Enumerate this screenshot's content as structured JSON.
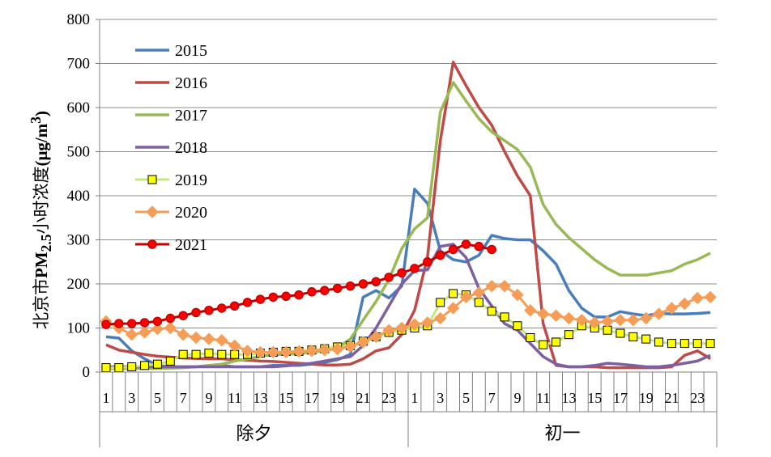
{
  "chart_data": {
    "type": "line",
    "ylabel_parts": {
      "prefix": "北京市",
      "pm": "PM",
      "sub": "2.5",
      "mid": "小时浓度",
      "unit_open": "(μg/m",
      "sup": "3",
      "unit_close": ")"
    },
    "ylim": [
      0,
      800
    ],
    "yticks": [
      "0",
      "100",
      "200",
      "300",
      "400",
      "500",
      "600",
      "700",
      "800"
    ],
    "x_tick_labels": [
      "1",
      "3",
      "5",
      "7",
      "9",
      "11",
      "13",
      "15",
      "17",
      "19",
      "21",
      "23",
      "1",
      "3",
      "5",
      "7",
      "9",
      "11",
      "13",
      "15",
      "17",
      "19",
      "21",
      "23"
    ],
    "groups": [
      "除夕",
      "初一"
    ],
    "legend_position": "top-left",
    "series": [
      {
        "name": "2015",
        "color": "#4A7EBB",
        "marker": "none",
        "values": [
          80,
          77,
          48,
          30,
          15,
          12,
          12,
          12,
          15,
          15,
          12,
          12,
          12,
          15,
          15,
          15,
          18,
          22,
          28,
          40,
          170,
          185,
          168,
          195,
          415,
          383,
          275,
          255,
          250,
          265,
          310,
          303,
          300,
          300,
          275,
          245,
          185,
          145,
          125,
          125,
          137,
          132,
          128,
          133,
          132,
          132,
          133,
          135
        ]
      },
      {
        "name": "2016",
        "color": "#BE4B48",
        "marker": "none",
        "values": [
          62,
          50,
          45,
          40,
          36,
          34,
          32,
          31,
          30,
          30,
          28,
          27,
          25,
          24,
          22,
          20,
          18,
          16,
          16,
          18,
          30,
          48,
          55,
          85,
          140,
          260,
          525,
          703,
          650,
          600,
          560,
          500,
          445,
          400,
          110,
          15,
          12,
          12,
          12,
          10,
          10,
          10,
          10,
          10,
          12,
          38,
          48,
          30
        ]
      },
      {
        "name": "2017",
        "color": "#98B954",
        "marker": "none",
        "values": [
          8,
          8,
          8,
          8,
          8,
          9,
          10,
          12,
          15,
          18,
          25,
          30,
          35,
          40,
          40,
          42,
          45,
          48,
          55,
          75,
          118,
          160,
          210,
          280,
          325,
          350,
          590,
          657,
          615,
          575,
          545,
          525,
          505,
          465,
          380,
          335,
          305,
          280,
          255,
          235,
          220,
          220,
          220,
          225,
          230,
          245,
          255,
          270
        ]
      },
      {
        "name": "2018",
        "color": "#7D60A0",
        "marker": "none",
        "values": [
          12,
          12,
          12,
          12,
          12,
          12,
          12,
          12,
          12,
          12,
          12,
          12,
          12,
          12,
          14,
          17,
          20,
          25,
          30,
          35,
          60,
          100,
          150,
          200,
          230,
          232,
          285,
          290,
          260,
          190,
          150,
          110,
          95,
          65,
          35,
          18,
          12,
          12,
          15,
          20,
          18,
          15,
          12,
          12,
          15,
          20,
          25,
          38
        ]
      },
      {
        "name": "2019",
        "color": "#000000",
        "lineColor": "#C6E77A",
        "fill": "#FFFF00",
        "marker": "square",
        "values": [
          10,
          10,
          12,
          15,
          18,
          25,
          40,
          40,
          43,
          40,
          40,
          40,
          43,
          45,
          47,
          47,
          50,
          53,
          57,
          60,
          70,
          80,
          90,
          95,
          100,
          105,
          158,
          178,
          175,
          158,
          138,
          125,
          105,
          78,
          62,
          68,
          85,
          105,
          100,
          95,
          88,
          80,
          75,
          68,
          65,
          65,
          65,
          65
        ]
      },
      {
        "name": "2020",
        "color": "#F59D56",
        "marker": "diamond",
        "values": [
          115,
          100,
          85,
          90,
          98,
          100,
          85,
          78,
          75,
          72,
          60,
          48,
          45,
          45,
          45,
          47,
          48,
          50,
          52,
          58,
          68,
          80,
          95,
          100,
          108,
          112,
          122,
          145,
          170,
          180,
          195,
          195,
          175,
          140,
          132,
          128,
          122,
          118,
          112,
          115,
          118,
          118,
          122,
          132,
          145,
          155,
          168,
          170
        ]
      },
      {
        "name": "2021",
        "color": "#C00000",
        "fill": "#FF0000",
        "marker": "circle",
        "values": [
          108,
          110,
          110,
          112,
          115,
          122,
          128,
          135,
          140,
          145,
          150,
          158,
          165,
          170,
          172,
          175,
          182,
          185,
          190,
          195,
          200,
          205,
          215,
          225,
          235,
          250,
          265,
          278,
          290,
          285,
          278
        ]
      }
    ]
  }
}
